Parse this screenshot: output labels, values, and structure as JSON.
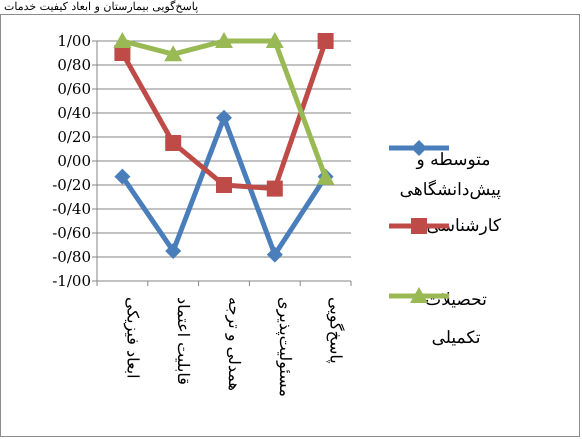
{
  "caption": "پاسخ‌گویی بیمارستان و ابعاد کیفیت خدمات",
  "chart_data": {
    "type": "line",
    "categories": [
      "ابعاد فیزیکی",
      "قابلیت اعتماد",
      "همدلی و ترجه",
      "مسئولیت‌پذیری",
      "پاسخ‌گویی"
    ],
    "ylim": [
      -1,
      1
    ],
    "ytick_step": 0.2,
    "ytick_labels": [
      "1/00",
      "0/80",
      "0/60",
      "0/40",
      "0/20",
      "0/00",
      "-0/20",
      "-0/40",
      "-0/60",
      "-0/80",
      "-1/00"
    ],
    "grid": true,
    "legend_position": "right",
    "series": [
      {
        "name": "متوسطه و پیش‌دانشگاهی",
        "values": [
          -0.13,
          -0.75,
          0.36,
          -0.78,
          -0.13
        ],
        "color": "#4a7ebb",
        "marker": "diamond"
      },
      {
        "name": "کارشناسی",
        "values": [
          0.9,
          0.15,
          -0.2,
          -0.23,
          1.0
        ],
        "color": "#be4b48",
        "marker": "square"
      },
      {
        "name": "تحصیلات تکمیلی",
        "values": [
          1.0,
          0.89,
          1.0,
          1.0,
          -0.14
        ],
        "color": "#98b954",
        "marker": "triangle"
      }
    ]
  }
}
